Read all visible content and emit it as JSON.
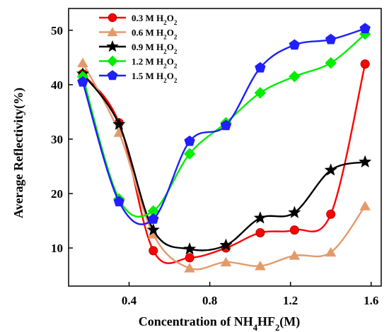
{
  "chart_data": {
    "type": "line",
    "xlabel": "Concentration of NH4HF2(M)",
    "ylabel": "Average Reflectivity(%)",
    "xlim": [
      0.1,
      1.65
    ],
    "ylim": [
      3,
      54
    ],
    "x_ticks": [
      0.4,
      0.8,
      1.2,
      1.6
    ],
    "x_tick_labels": [
      "0.4",
      "0.8",
      "1.2",
      "1.6"
    ],
    "y_ticks": [
      10,
      20,
      30,
      40,
      50
    ],
    "y_tick_labels": [
      "10",
      "20",
      "30",
      "40",
      "50"
    ],
    "grid": false,
    "smooth": true,
    "legend_position": "top-left",
    "x": [
      0.17,
      0.35,
      0.52,
      0.7,
      0.88,
      1.05,
      1.22,
      1.4,
      1.57
    ],
    "series": [
      {
        "name": "0.3 M H2O2",
        "marker": "circle",
        "color": "#ff0000",
        "values": [
          42.0,
          33.0,
          9.5,
          8.2,
          10.0,
          12.8,
          13.3,
          16.2,
          43.8
        ]
      },
      {
        "name": "0.6 M H2O2",
        "marker": "triangle",
        "color": "#e39a6b",
        "values": [
          44.0,
          31.2,
          12.5,
          6.3,
          7.4,
          6.7,
          8.6,
          9.2,
          17.7
        ]
      },
      {
        "name": "0.9 M H2O2",
        "marker": "star",
        "color": "#000000",
        "values": [
          42.0,
          32.7,
          13.3,
          9.8,
          10.5,
          15.5,
          16.5,
          24.3,
          25.8
        ]
      },
      {
        "name": "1.2 M H2O2",
        "marker": "diamond",
        "color": "#00ee00",
        "values": [
          41.5,
          19.0,
          16.8,
          27.3,
          33.0,
          38.5,
          41.5,
          44.0,
          49.3
        ]
      },
      {
        "name": "1.5 M H2O2",
        "marker": "pentagon",
        "color": "#1f1fff",
        "values": [
          40.5,
          18.5,
          15.3,
          29.6,
          32.5,
          43.1,
          47.3,
          48.3,
          50.3
        ]
      }
    ]
  }
}
